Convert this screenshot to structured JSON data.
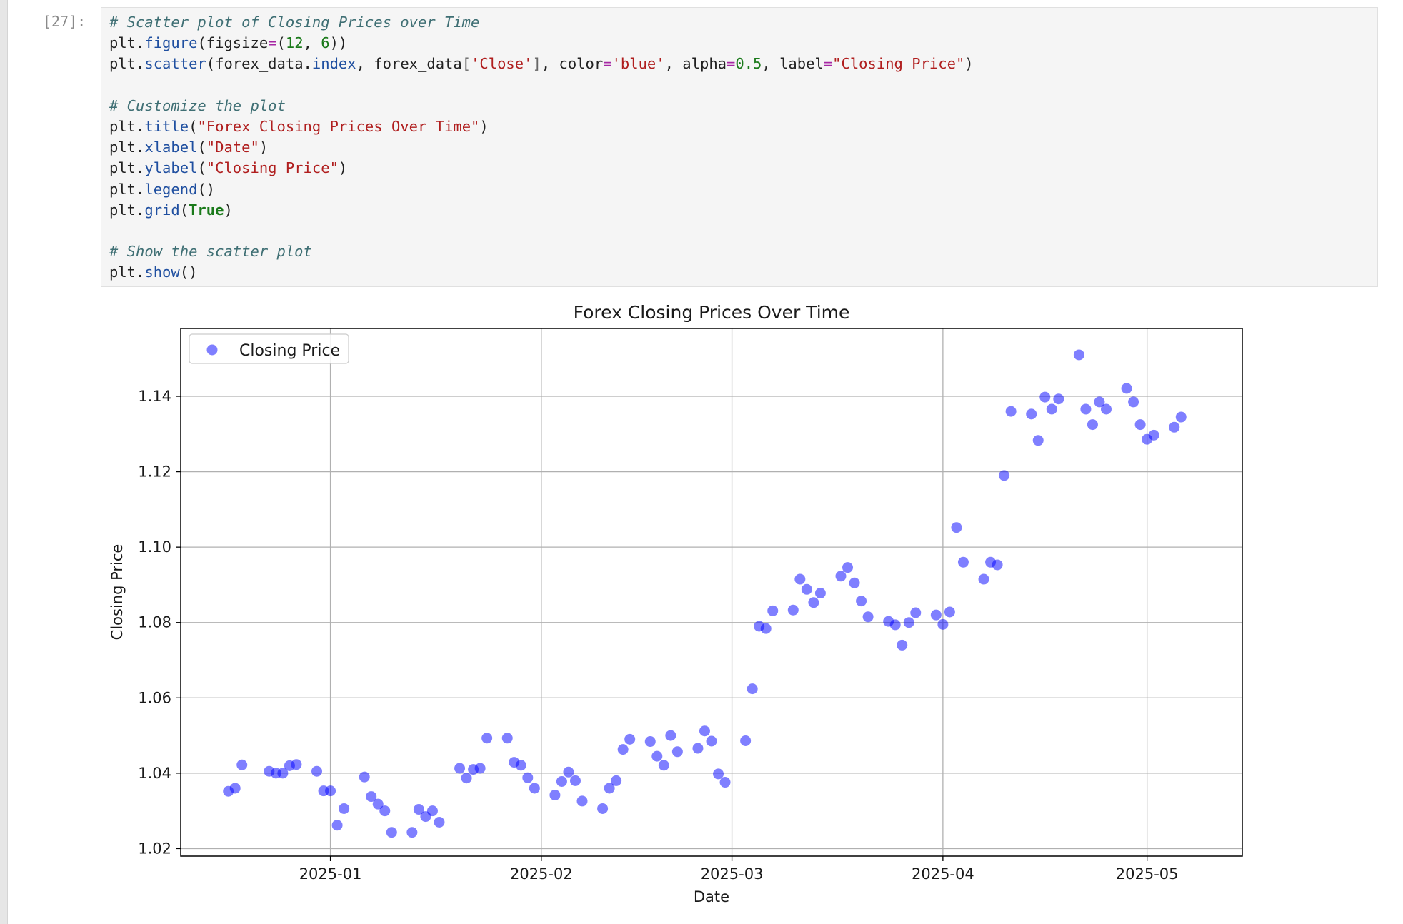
{
  "cell": {
    "prompt": "[27]:",
    "code_lines": [
      [
        {
          "t": "# Scatter plot of Closing Prices over Time",
          "c": "cm"
        }
      ],
      [
        {
          "t": "plt."
        },
        {
          "t": "figure",
          "c": "fn"
        },
        {
          "t": "(figsize"
        },
        {
          "t": "=",
          "c": "op"
        },
        {
          "t": "("
        },
        {
          "t": "12",
          "c": "nu"
        },
        {
          "t": ", "
        },
        {
          "t": "6",
          "c": "nu"
        },
        {
          "t": "))"
        }
      ],
      [
        {
          "t": "plt."
        },
        {
          "t": "scatter",
          "c": "fn"
        },
        {
          "t": "(forex_data."
        },
        {
          "t": "index",
          "c": "fn"
        },
        {
          "t": ", forex_data"
        },
        {
          "t": "[",
          "c": "br"
        },
        {
          "t": "'Close'",
          "c": "st"
        },
        {
          "t": "]",
          "c": "br"
        },
        {
          "t": ", color"
        },
        {
          "t": "=",
          "c": "op"
        },
        {
          "t": "'blue'",
          "c": "st"
        },
        {
          "t": ", alpha"
        },
        {
          "t": "=",
          "c": "op"
        },
        {
          "t": "0.5",
          "c": "nu"
        },
        {
          "t": ", label"
        },
        {
          "t": "=",
          "c": "op"
        },
        {
          "t": "\"Closing Price\"",
          "c": "st"
        },
        {
          "t": ")"
        }
      ],
      [],
      [
        {
          "t": "# Customize the plot",
          "c": "cm"
        }
      ],
      [
        {
          "t": "plt."
        },
        {
          "t": "title",
          "c": "fn"
        },
        {
          "t": "("
        },
        {
          "t": "\"Forex Closing Prices Over Time\"",
          "c": "st"
        },
        {
          "t": ")"
        }
      ],
      [
        {
          "t": "plt."
        },
        {
          "t": "xlabel",
          "c": "fn"
        },
        {
          "t": "("
        },
        {
          "t": "\"Date\"",
          "c": "st"
        },
        {
          "t": ")"
        }
      ],
      [
        {
          "t": "plt."
        },
        {
          "t": "ylabel",
          "c": "fn"
        },
        {
          "t": "("
        },
        {
          "t": "\"Closing Price\"",
          "c": "st"
        },
        {
          "t": ")"
        }
      ],
      [
        {
          "t": "plt."
        },
        {
          "t": "legend",
          "c": "fn"
        },
        {
          "t": "()"
        }
      ],
      [
        {
          "t": "plt."
        },
        {
          "t": "grid",
          "c": "fn"
        },
        {
          "t": "("
        },
        {
          "t": "True",
          "c": "kw"
        },
        {
          "t": ")"
        }
      ],
      [],
      [
        {
          "t": "# Show the scatter plot",
          "c": "cm"
        }
      ],
      [
        {
          "t": "plt."
        },
        {
          "t": "show",
          "c": "fn"
        },
        {
          "t": "()"
        }
      ]
    ]
  },
  "chart_data": {
    "type": "scatter",
    "title": "Forex Closing Prices Over Time",
    "xlabel": "Date",
    "ylabel": "Closing Price",
    "x_type": "date",
    "xlim": [
      "2024-12-10",
      "2025-05-15"
    ],
    "ylim": [
      1.018,
      1.158
    ],
    "x_ticks": [
      "2025-01-01",
      "2025-02-01",
      "2025-03-01",
      "2025-04-01",
      "2025-05-01"
    ],
    "x_tick_labels": [
      "2025-01",
      "2025-02",
      "2025-03",
      "2025-04",
      "2025-05"
    ],
    "y_ticks": [
      1.02,
      1.04,
      1.06,
      1.08,
      1.1,
      1.12,
      1.14
    ],
    "y_tick_labels": [
      "1.02",
      "1.04",
      "1.06",
      "1.08",
      "1.10",
      "1.12",
      "1.14"
    ],
    "grid": true,
    "legend": "top-left",
    "marker_color": "#0000ff",
    "marker_alpha": 0.5,
    "series": [
      {
        "name": "Closing Price",
        "points": [
          [
            "2024-12-17",
            1.0352
          ],
          [
            "2024-12-18",
            1.036
          ],
          [
            "2024-12-19",
            1.0422
          ],
          [
            "2024-12-23",
            1.0405
          ],
          [
            "2024-12-24",
            1.04
          ],
          [
            "2024-12-25",
            1.04
          ],
          [
            "2024-12-26",
            1.042
          ],
          [
            "2024-12-27",
            1.0423
          ],
          [
            "2024-12-30",
            1.0405
          ],
          [
            "2024-12-31",
            1.0353
          ],
          [
            "2025-01-01",
            1.0353
          ],
          [
            "2025-01-02",
            1.0262
          ],
          [
            "2025-01-03",
            1.0306
          ],
          [
            "2025-01-06",
            1.039
          ],
          [
            "2025-01-07",
            1.0338
          ],
          [
            "2025-01-08",
            1.0318
          ],
          [
            "2025-01-09",
            1.03
          ],
          [
            "2025-01-10",
            1.0243
          ],
          [
            "2025-01-13",
            1.0243
          ],
          [
            "2025-01-14",
            1.0304
          ],
          [
            "2025-01-15",
            1.0285
          ],
          [
            "2025-01-16",
            1.03
          ],
          [
            "2025-01-17",
            1.027
          ],
          [
            "2025-01-20",
            1.0413
          ],
          [
            "2025-01-21",
            1.0387
          ],
          [
            "2025-01-22",
            1.041
          ],
          [
            "2025-01-23",
            1.0413
          ],
          [
            "2025-01-24",
            1.0493
          ],
          [
            "2025-01-27",
            1.0493
          ],
          [
            "2025-01-28",
            1.0429
          ],
          [
            "2025-01-29",
            1.0421
          ],
          [
            "2025-01-30",
            1.0388
          ],
          [
            "2025-01-31",
            1.036
          ],
          [
            "2025-02-03",
            1.0342
          ],
          [
            "2025-02-04",
            1.0378
          ],
          [
            "2025-02-05",
            1.0403
          ],
          [
            "2025-02-06",
            1.038
          ],
          [
            "2025-02-07",
            1.0326
          ],
          [
            "2025-02-10",
            1.0306
          ],
          [
            "2025-02-11",
            1.036
          ],
          [
            "2025-02-12",
            1.038
          ],
          [
            "2025-02-13",
            1.0463
          ],
          [
            "2025-02-14",
            1.049
          ],
          [
            "2025-02-17",
            1.0484
          ],
          [
            "2025-02-18",
            1.0445
          ],
          [
            "2025-02-19",
            1.0421
          ],
          [
            "2025-02-20",
            1.05
          ],
          [
            "2025-02-21",
            1.0457
          ],
          [
            "2025-02-24",
            1.0466
          ],
          [
            "2025-02-25",
            1.0512
          ],
          [
            "2025-02-26",
            1.0485
          ],
          [
            "2025-02-27",
            1.0398
          ],
          [
            "2025-02-28",
            1.0376
          ],
          [
            "2025-03-03",
            1.0486
          ],
          [
            "2025-03-04",
            1.0624
          ],
          [
            "2025-03-05",
            1.079
          ],
          [
            "2025-03-06",
            1.0784
          ],
          [
            "2025-03-07",
            1.0831
          ],
          [
            "2025-03-10",
            1.0833
          ],
          [
            "2025-03-11",
            1.0915
          ],
          [
            "2025-03-12",
            1.0888
          ],
          [
            "2025-03-13",
            1.0853
          ],
          [
            "2025-03-14",
            1.0878
          ],
          [
            "2025-03-17",
            1.0923
          ],
          [
            "2025-03-18",
            1.0946
          ],
          [
            "2025-03-19",
            1.0905
          ],
          [
            "2025-03-20",
            1.0857
          ],
          [
            "2025-03-21",
            1.0815
          ],
          [
            "2025-03-24",
            1.0803
          ],
          [
            "2025-03-25",
            1.0794
          ],
          [
            "2025-03-26",
            1.074
          ],
          [
            "2025-03-27",
            1.08
          ],
          [
            "2025-03-28",
            1.0826
          ],
          [
            "2025-03-31",
            1.082
          ],
          [
            "2025-04-01",
            1.0795
          ],
          [
            "2025-04-02",
            1.0828
          ],
          [
            "2025-04-03",
            1.1052
          ],
          [
            "2025-04-04",
            1.096
          ],
          [
            "2025-04-07",
            1.0915
          ],
          [
            "2025-04-08",
            1.096
          ],
          [
            "2025-04-09",
            1.0953
          ],
          [
            "2025-04-10",
            1.119
          ],
          [
            "2025-04-11",
            1.136
          ],
          [
            "2025-04-14",
            1.1353
          ],
          [
            "2025-04-15",
            1.1283
          ],
          [
            "2025-04-16",
            1.1398
          ],
          [
            "2025-04-17",
            1.1366
          ],
          [
            "2025-04-18",
            1.1393
          ],
          [
            "2025-04-21",
            1.151
          ],
          [
            "2025-04-22",
            1.1366
          ],
          [
            "2025-04-23",
            1.1325
          ],
          [
            "2025-04-24",
            1.1385
          ],
          [
            "2025-04-25",
            1.1366
          ],
          [
            "2025-04-28",
            1.1421
          ],
          [
            "2025-04-29",
            1.1385
          ],
          [
            "2025-04-30",
            1.1325
          ],
          [
            "2025-05-01",
            1.1286
          ],
          [
            "2025-05-02",
            1.1297
          ],
          [
            "2025-05-05",
            1.1318
          ],
          [
            "2025-05-06",
            1.1345
          ]
        ]
      }
    ]
  }
}
